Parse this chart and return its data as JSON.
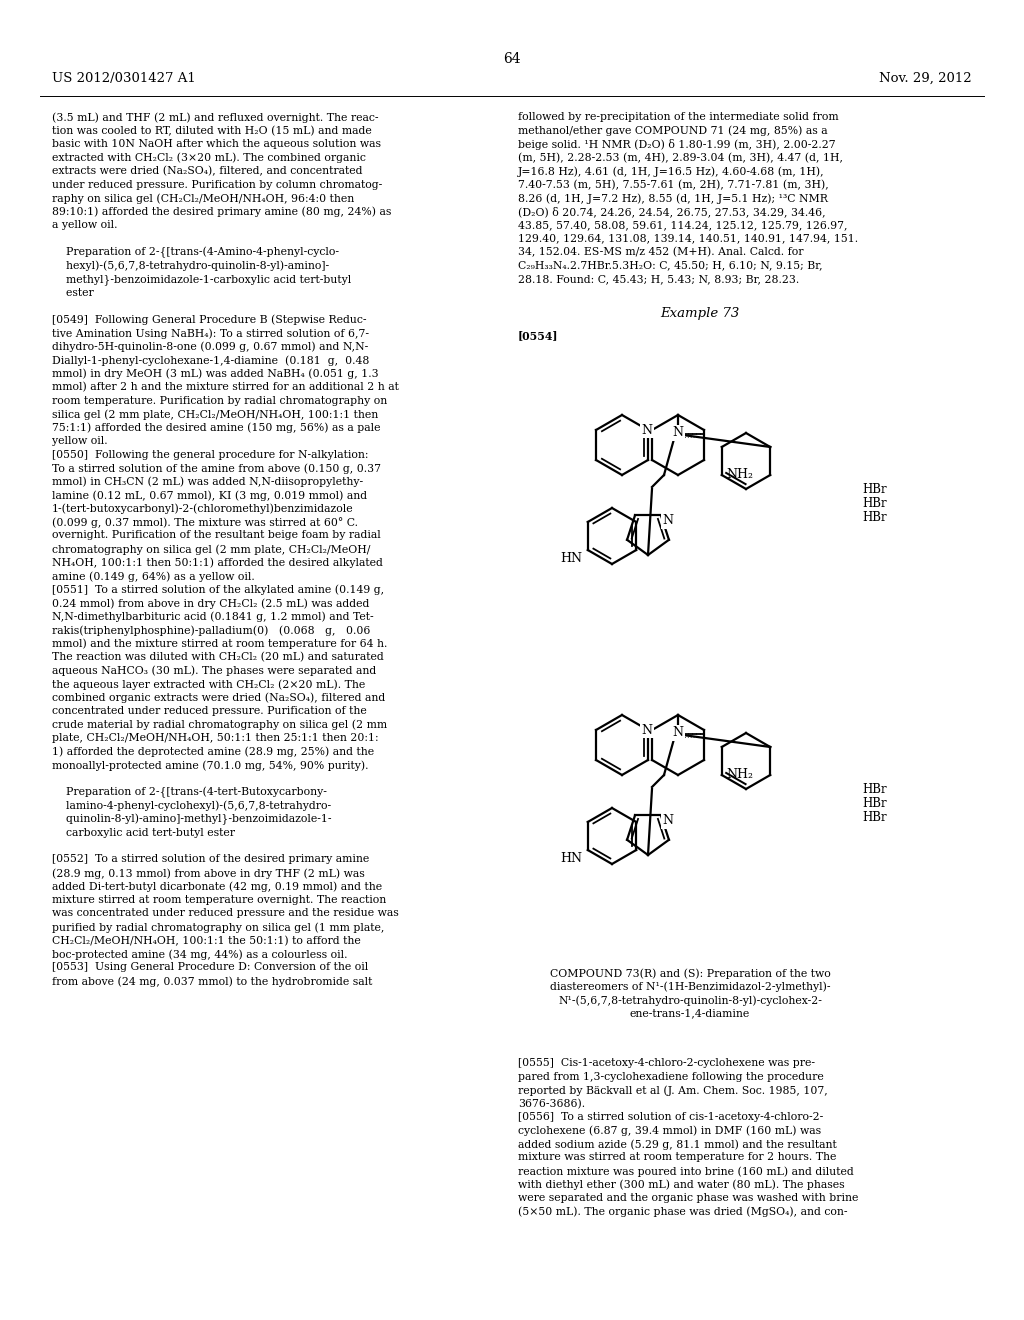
{
  "page_number": "64",
  "header_left": "US 2012/0301427 A1",
  "header_right": "Nov. 29, 2012",
  "background_color": "#ffffff",
  "text_color": "#000000",
  "left_column_text": [
    "(3.5 mL) and THF (2 mL) and refluxed overnight. The reac-",
    "tion was cooled to RT, diluted with H₂O (15 mL) and made",
    "basic with 10N NaOH after which the aqueous solution was",
    "extracted with CH₂Cl₂ (3×20 mL). The combined organic",
    "extracts were dried (Na₂SO₄), filtered, and concentrated",
    "under reduced pressure. Purification by column chromatog-",
    "raphy on silica gel (CH₂Cl₂/MeOH/NH₄OH, 96:4:0 then",
    "89:10:1) afforded the desired primary amine (80 mg, 24%) as",
    "a yellow oil.",
    "",
    "    Preparation of 2-{[trans-(4-Amino-4-phenyl-cyclo-",
    "    hexyl)-(5,6,7,8-tetrahydro-quinolin-8-yl)-amino]-",
    "    methyl}-benzoimidazole-1-carboxylic acid tert-butyl",
    "    ester",
    "",
    "[0549]  Following General Procedure B (Stepwise Reduc-",
    "tive Amination Using NaBH₄): To a stirred solution of 6,7-",
    "dihydro-5H-quinolin-8-one (0.099 g, 0.67 mmol) and N,N-",
    "Diallyl-1-phenyl-cyclohexane-1,4-diamine  (0.181  g,  0.48",
    "mmol) in dry MeOH (3 mL) was added NaBH₄ (0.051 g, 1.3",
    "mmol) after 2 h and the mixture stirred for an additional 2 h at",
    "room temperature. Purification by radial chromatography on",
    "silica gel (2 mm plate, CH₂Cl₂/MeOH/NH₄OH, 100:1:1 then",
    "75:1:1) afforded the desired amine (150 mg, 56%) as a pale",
    "yellow oil.",
    "[0550]  Following the general procedure for N-alkylation:",
    "To a stirred solution of the amine from above (0.150 g, 0.37",
    "mmol) in CH₃CN (2 mL) was added N,N-diisopropylethy-",
    "lamine (0.12 mL, 0.67 mmol), KI (3 mg, 0.019 mmol) and",
    "1-(tert-butoxycarbonyl)-2-(chloromethyl)benzimidazole",
    "(0.099 g, 0.37 mmol). The mixture was stirred at 60° C.",
    "overnight. Purification of the resultant beige foam by radial",
    "chromatography on silica gel (2 mm plate, CH₂Cl₂/MeOH/",
    "NH₄OH, 100:1:1 then 50:1:1) afforded the desired alkylated",
    "amine (0.149 g, 64%) as a yellow oil.",
    "[0551]  To a stirred solution of the alkylated amine (0.149 g,",
    "0.24 mmol) from above in dry CH₂Cl₂ (2.5 mL) was added",
    "N,N-dimethylbarbituric acid (0.1841 g, 1.2 mmol) and Tet-",
    "rakis(triphenylphosphine)-palladium(0)   (0.068   g,   0.06",
    "mmol) and the mixture stirred at room temperature for 64 h.",
    "The reaction was diluted with CH₂Cl₂ (20 mL) and saturated",
    "aqueous NaHCO₃ (30 mL). The phases were separated and",
    "the aqueous layer extracted with CH₂Cl₂ (2×20 mL). The",
    "combined organic extracts were dried (Na₂SO₄), filtered and",
    "concentrated under reduced pressure. Purification of the",
    "crude material by radial chromatography on silica gel (2 mm",
    "plate, CH₂Cl₂/MeOH/NH₄OH, 50:1:1 then 25:1:1 then 20:1:",
    "1) afforded the deprotected amine (28.9 mg, 25%) and the",
    "monoallyl-protected amine (70.1.0 mg, 54%, 90% purity).",
    "",
    "    Preparation of 2-{[trans-(4-tert-Butoxycarbony-",
    "    lamino-4-phenyl-cyclohexyl)-(5,6,7,8-tetrahydro-",
    "    quinolin-8-yl)-amino]-methyl}-benzoimidazole-1-",
    "    carboxylic acid tert-butyl ester",
    "",
    "[0552]  To a stirred solution of the desired primary amine",
    "(28.9 mg, 0.13 mmol) from above in dry THF (2 mL) was",
    "added Di-tert-butyl dicarbonate (42 mg, 0.19 mmol) and the",
    "mixture stirred at room temperature overnight. The reaction",
    "was concentrated under reduced pressure and the residue was",
    "purified by radial chromatography on silica gel (1 mm plate,",
    "CH₂Cl₂/MeOH/NH₄OH, 100:1:1 the 50:1:1) to afford the",
    "boc-protected amine (34 mg, 44%) as a colourless oil.",
    "[0553]  Using General Procedure D: Conversion of the oil",
    "from above (24 mg, 0.037 mmol) to the hydrobromide salt"
  ],
  "right_column_text_top": [
    "followed by re-precipitation of the intermediate solid from",
    "methanol/ether gave COMPOUND 71 (24 mg, 85%) as a",
    "beige solid. ¹H NMR (D₂O) δ 1.80-1.99 (m, 3H), 2.00-2.27",
    "(m, 5H), 2.28-2.53 (m, 4H), 2.89-3.04 (m, 3H), 4.47 (d, 1H,",
    "J=16.8 Hz), 4.61 (d, 1H, J=16.5 Hz), 4.60-4.68 (m, 1H),",
    "7.40-7.53 (m, 5H), 7.55-7.61 (m, 2H), 7.71-7.81 (m, 3H),",
    "8.26 (d, 1H, J=7.2 Hz), 8.55 (d, 1H, J=5.1 Hz); ¹³C NMR",
    "(D₂O) δ 20.74, 24.26, 24.54, 26.75, 27.53, 34.29, 34.46,",
    "43.85, 57.40, 58.08, 59.61, 114.24, 125.12, 125.79, 126.97,",
    "129.40, 129.64, 131.08, 139.14, 140.51, 140.91, 147.94, 151.",
    "34, 152.04. ES-MS m/z 452 (M+H). Anal. Calcd. for",
    "C₂₉H₃₃N₄.2.7HBr.5.3H₂O: C, 45.50; H, 6.10; N, 9.15; Br,",
    "28.18. Found: C, 45.43; H, 5.43; N, 8.93; Br, 28.23."
  ],
  "example_header": "Example 73",
  "paragraph_label": "[0554]",
  "hbr_labels_top": [
    "HBr",
    "HBr",
    "HBr"
  ],
  "hbr_labels_bottom": [
    "HBr",
    "HBr",
    "HBr"
  ],
  "compound_caption_lines": [
    "COMPOUND 73(R) and (S): Preparation of the two",
    "diastereomers of N¹-(1H-Benzimidazol-2-ylmethyl)-",
    "N¹-(5,6,7,8-tetrahydro-quinolin-8-yl)-cyclohex-2-",
    "ene-trans-1,4-diamine"
  ],
  "right_bottom_text": [
    "[0555]  Cis-1-acetoxy-4-chloro-2-cyclohexene was pre-",
    "pared from 1,3-cyclohexadiene following the procedure",
    "reported by Bäckvall et al (J. Am. Chem. Soc. 1985, 107,",
    "3676-3686).",
    "[0556]  To a stirred solution of cis-1-acetoxy-4-chloro-2-",
    "cyclohexene (6.87 g, 39.4 mmol) in DMF (160 mL) was",
    "added sodium azide (5.29 g, 81.1 mmol) and the resultant",
    "mixture was stirred at room temperature for 2 hours. The",
    "reaction mixture was poured into brine (160 mL) and diluted",
    "with diethyl ether (300 mL) and water (80 mL). The phases",
    "were separated and the organic phase was washed with brine",
    "(5×50 mL). The organic phase was dried (MgSO₄), and con-"
  ]
}
